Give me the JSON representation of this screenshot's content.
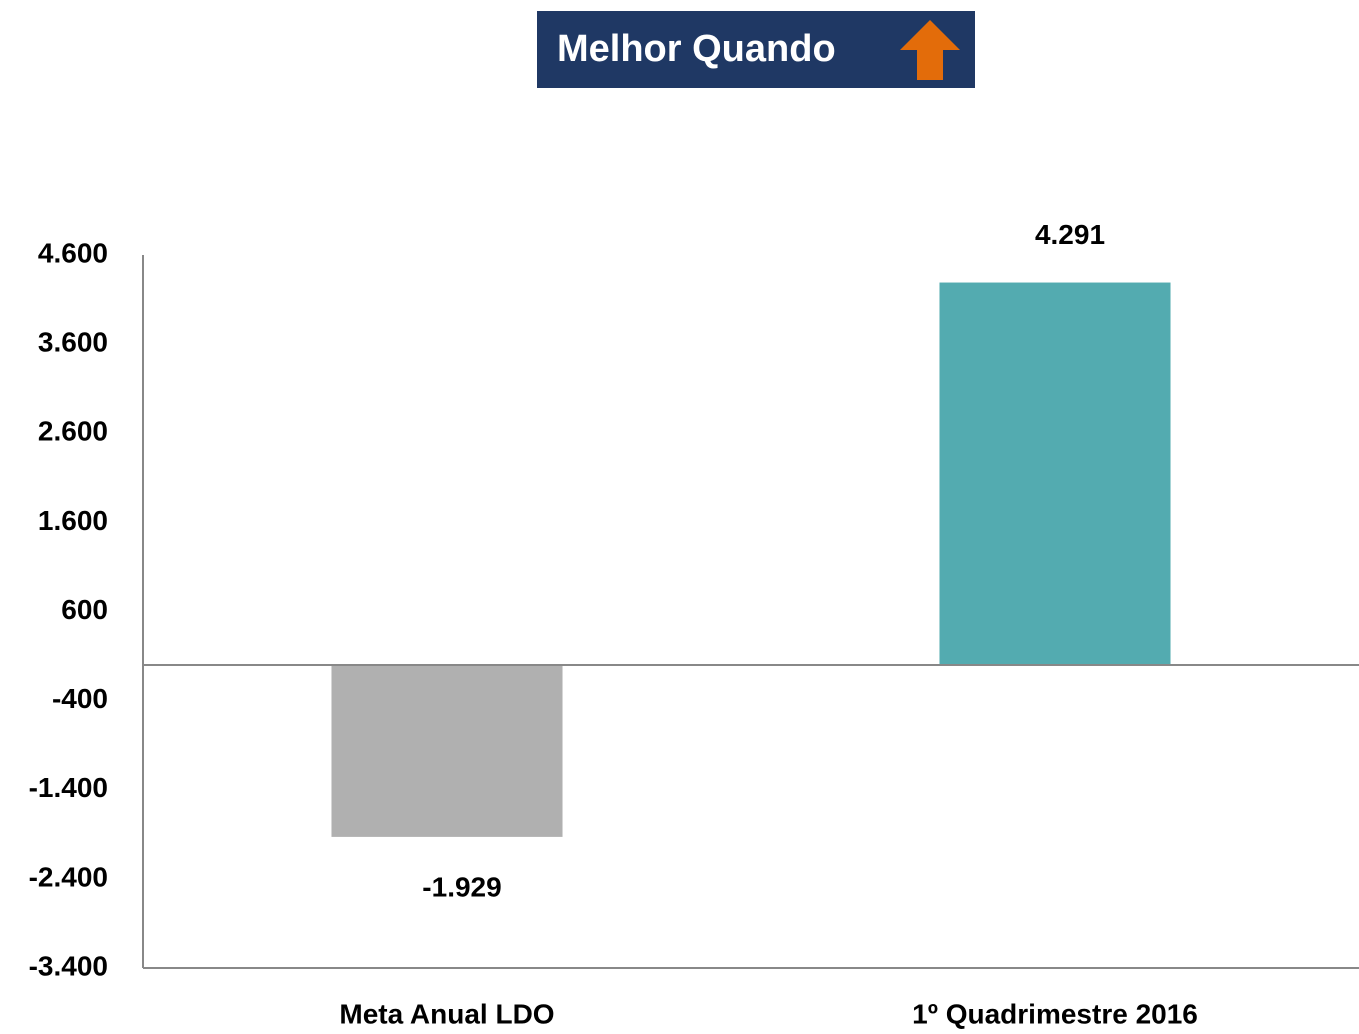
{
  "chart_data": {
    "type": "bar",
    "title": "Melhor Quando",
    "categories": [
      "Meta Anual LDO",
      "1º Quadrimestre 2016"
    ],
    "values": [
      -1929,
      4291
    ],
    "value_labels": [
      "-1.929",
      "4.291"
    ],
    "colors": [
      "#b0b0b0",
      "#53abb0"
    ],
    "ylim": [
      -3400,
      4600
    ],
    "yticks": [
      {
        "value": -3400,
        "label": "-3.400"
      },
      {
        "value": -2400,
        "label": "-2.400"
      },
      {
        "value": -1400,
        "label": "-1.400"
      },
      -400,
      600,
      {
        "value": 1600,
        "label": "1.600"
      },
      {
        "value": 2600,
        "label": "2.600"
      },
      {
        "value": 3600,
        "label": "3.600"
      },
      {
        "value": 4600,
        "label": "4.600"
      }
    ],
    "grid": false
  }
}
